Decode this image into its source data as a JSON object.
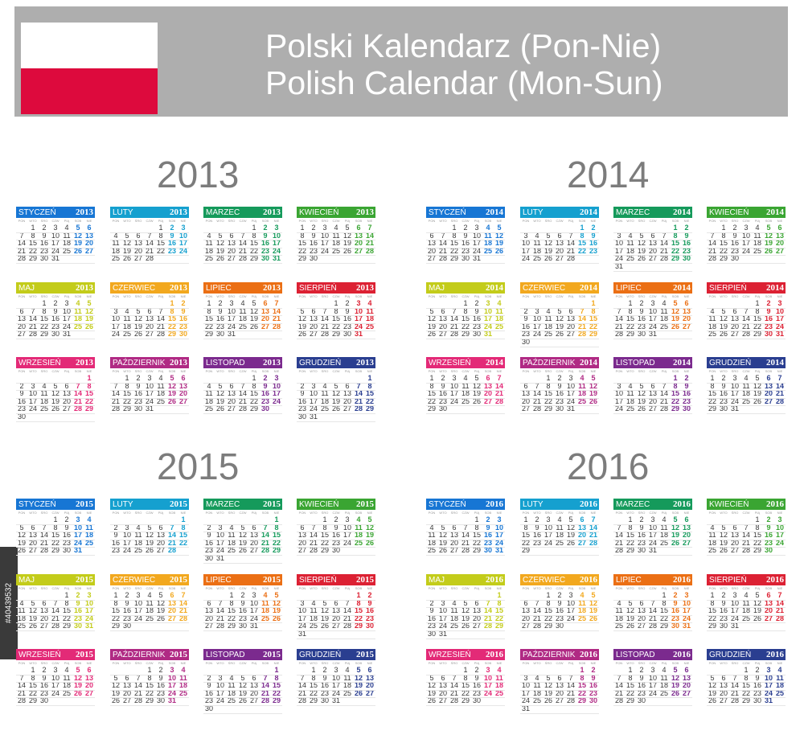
{
  "header": {
    "title_pl": "Polski Kalendarz (Pon-Nie)",
    "title_en": "Polish Calendar (Mon-Sun)"
  },
  "watermark_id": "#40439532",
  "colors": {
    "banner": "#aeaeae",
    "flag_white": "#ffffff",
    "flag_red": "#dd0a3d",
    "year_text": "#7c7c7c",
    "months": [
      "#1776d4",
      "#15a0cf",
      "#159a5b",
      "#3aa532",
      "#c3cc1a",
      "#f2a81e",
      "#eb6f14",
      "#dc2133",
      "#e32a77",
      "#b02a84",
      "#7b2a8e",
      "#2a3e90"
    ]
  },
  "day_names": [
    "PON",
    "WTO",
    "ŚRO",
    "CZW",
    "PIĄ",
    "SOB",
    "NIE"
  ],
  "month_names": [
    "STYCZEŃ",
    "LUTY",
    "MARZEC",
    "KWIECIEŃ",
    "MAJ",
    "CZERWIEC",
    "LIPIEC",
    "SIERPIEŃ",
    "WRZESIEŃ",
    "PAŹDZIERNIK",
    "LISTOPAD",
    "GRUDZIEŃ"
  ],
  "years": [
    {
      "year": "2013",
      "first_weekday": [
        1,
        4,
        4,
        0,
        2,
        5,
        0,
        3,
        6,
        1,
        4,
        6
      ],
      "days_in_month": [
        31,
        28,
        31,
        30,
        31,
        30,
        31,
        31,
        30,
        31,
        30,
        31
      ]
    },
    {
      "year": "2014",
      "first_weekday": [
        2,
        5,
        5,
        1,
        3,
        6,
        1,
        4,
        0,
        2,
        5,
        0
      ],
      "days_in_month": [
        31,
        28,
        31,
        30,
        31,
        30,
        31,
        31,
        30,
        31,
        30,
        31
      ]
    },
    {
      "year": "2015",
      "first_weekday": [
        3,
        6,
        6,
        2,
        4,
        0,
        2,
        5,
        1,
        3,
        6,
        1
      ],
      "days_in_month": [
        31,
        28,
        31,
        30,
        31,
        30,
        31,
        31,
        30,
        31,
        30,
        31
      ]
    },
    {
      "year": "2016",
      "first_weekday": [
        4,
        0,
        1,
        4,
        6,
        2,
        4,
        0,
        3,
        5,
        1,
        3
      ],
      "days_in_month": [
        31,
        29,
        31,
        30,
        31,
        30,
        31,
        31,
        30,
        31,
        30,
        31
      ]
    }
  ]
}
